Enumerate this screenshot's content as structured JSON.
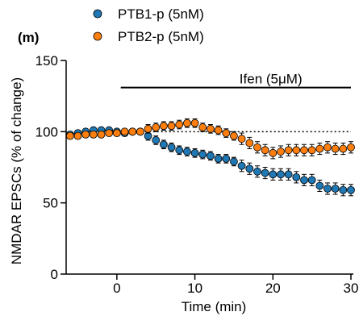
{
  "chart_data": {
    "type": "scatter",
    "panel_label": "(m)",
    "title": "",
    "xlabel": "Time (min)",
    "ylabel": "NMDAR EPSCs (% of change)",
    "xlim": [
      -6.5,
      30
    ],
    "ylim": [
      0,
      150
    ],
    "xticks": [
      0,
      10,
      20,
      30
    ],
    "yticks": [
      0,
      50,
      100,
      150
    ],
    "grid": false,
    "legend_position": "top-left",
    "reference_line": {
      "y": 100,
      "style": "dotted"
    },
    "drug_bar": {
      "label": "Ifen (5μM)",
      "x_start": 0.5,
      "x_end": 30
    },
    "series": [
      {
        "name": "PTB1-p (5nM)",
        "color": "#1f77b4",
        "x": [
          -6,
          -5,
          -4,
          -3,
          -2,
          -1,
          0,
          1,
          2,
          3,
          4,
          5,
          6,
          7,
          8,
          9,
          10,
          11,
          12,
          13,
          14,
          15,
          16,
          17,
          18,
          19,
          20,
          21,
          22,
          23,
          24,
          25,
          26,
          27,
          28,
          29,
          30
        ],
        "y": [
          98,
          99,
          100,
          101,
          101,
          101,
          100,
          99,
          100,
          100,
          97,
          94,
          91,
          89,
          87,
          86,
          85,
          84,
          83,
          81,
          81,
          79,
          76,
          74,
          72,
          71,
          70,
          70,
          70,
          68,
          66,
          66,
          62,
          60,
          60,
          59,
          59
        ],
        "err": [
          2,
          2,
          2,
          2,
          2,
          2,
          2,
          2,
          2,
          2,
          3,
          3,
          3,
          3,
          3,
          3,
          3,
          3,
          3,
          3,
          3,
          3,
          4,
          4,
          4,
          4,
          4,
          4,
          4,
          4,
          4,
          4,
          4,
          4,
          4,
          4,
          4
        ]
      },
      {
        "name": "PTB2-p (5nM)",
        "color": "#ff7f0e",
        "x": [
          -6,
          -5,
          -4,
          -3,
          -2,
          -1,
          0,
          1,
          2,
          3,
          4,
          5,
          6,
          7,
          8,
          9,
          10,
          11,
          12,
          13,
          14,
          15,
          16,
          17,
          18,
          19,
          20,
          21,
          22,
          23,
          24,
          25,
          26,
          27,
          28,
          29,
          30
        ],
        "y": [
          97,
          97,
          98,
          98,
          98,
          99,
          99,
          100,
          100,
          100,
          102,
          103,
          104,
          104,
          105,
          106,
          106,
          103,
          102,
          101,
          99,
          97,
          95,
          92,
          89,
          87,
          85,
          86,
          87,
          87,
          87,
          87,
          88,
          89,
          88,
          88,
          89
        ],
        "err": [
          2,
          2,
          2,
          2,
          2,
          2,
          2,
          2,
          2,
          2,
          3,
          3,
          3,
          3,
          3,
          3,
          3,
          3,
          3,
          3,
          3,
          3,
          4,
          4,
          4,
          4,
          4,
          4,
          4,
          4,
          4,
          4,
          4,
          4,
          4,
          4,
          4
        ]
      }
    ]
  }
}
